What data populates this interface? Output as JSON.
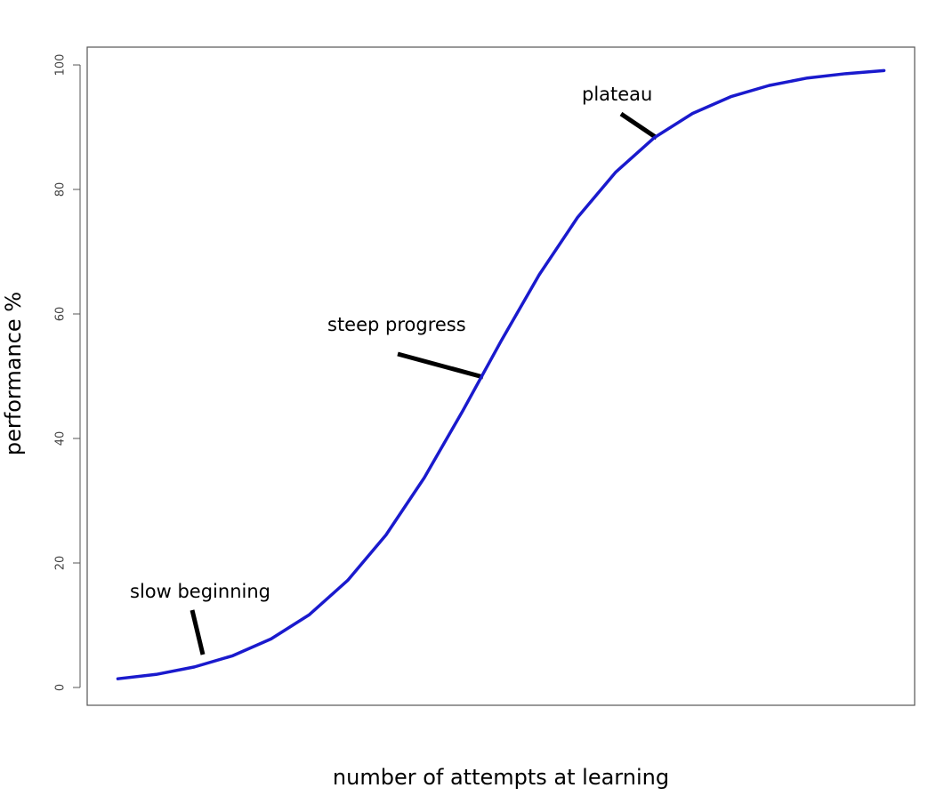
{
  "chart_data": {
    "type": "line",
    "x": [
      0,
      1,
      2,
      3,
      4,
      5,
      6,
      7,
      8,
      9,
      10,
      11,
      12,
      13,
      14,
      15,
      16,
      17,
      18,
      19,
      20
    ],
    "values": [
      1.4,
      2.1,
      3.3,
      5.1,
      7.8,
      11.7,
      17.2,
      24.5,
      33.7,
      44.4,
      55.6,
      66.3,
      75.5,
      82.8,
      88.3,
      92.2,
      94.9,
      96.7,
      97.9,
      98.6,
      99.1
    ],
    "color": "#1a1acd",
    "xlim": [
      -0.8,
      20.8
    ],
    "ylim": [
      -2.86,
      102.86
    ],
    "yticks": [
      0,
      20,
      40,
      60,
      80,
      100
    ],
    "grid": false,
    "x_label": "number of attempts at learning",
    "y_label": "performance %",
    "annotations": [
      "slow beginning",
      "steep progress",
      "plateau"
    ]
  }
}
